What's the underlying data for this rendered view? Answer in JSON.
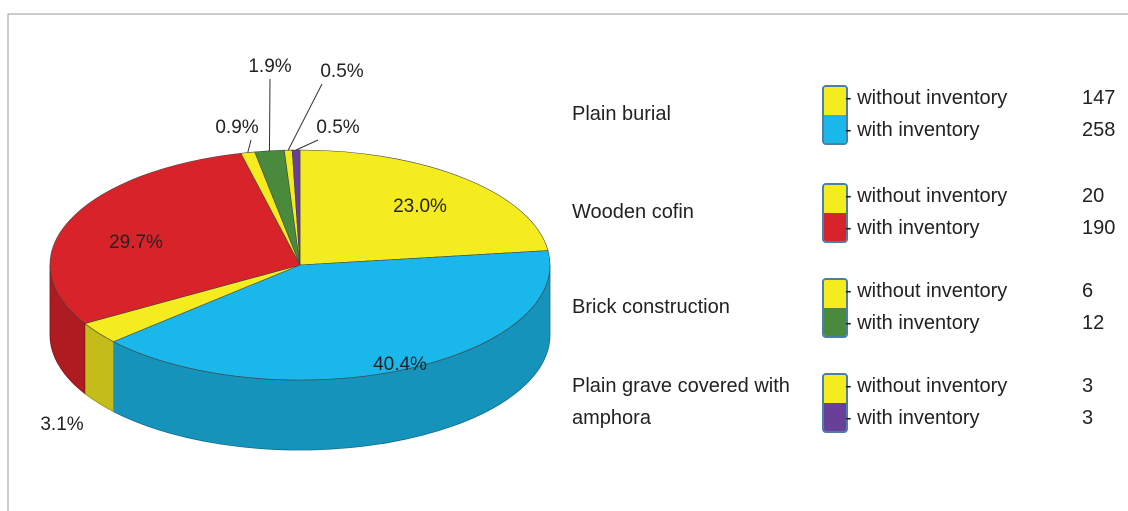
{
  "chart_data": {
    "type": "pie",
    "values": [
      23.0,
      40.4,
      3.1,
      29.7,
      0.9,
      1.9,
      0.5,
      0.5
    ],
    "value_labels": [
      "23.0%",
      "40.4%",
      "3.1%",
      "29.7%",
      "0.9%",
      "1.9%",
      "0.5%",
      "0.5%"
    ],
    "colors": [
      "#f5ec1f",
      "#1ab8ea",
      "#f5ec1f",
      "#d9232a",
      "#f5ec1f",
      "#4a8a3c",
      "#f5ec1f",
      "#6a3f9a"
    ],
    "legend": [
      {
        "group": "Plain burial",
        "entries": [
          {
            "label": "- without inventory",
            "count": 147,
            "color": "#f5ec1f"
          },
          {
            "label": "- with inventory",
            "count": 258,
            "color": "#1ab8ea"
          }
        ]
      },
      {
        "group": "Wooden cofin",
        "entries": [
          {
            "label": "- without inventory",
            "count": 20,
            "color": "#f5ec1f"
          },
          {
            "label": "- with inventory",
            "count": 190,
            "color": "#d9232a"
          }
        ]
      },
      {
        "group": "Brick construction",
        "entries": [
          {
            "label": "- without inventory",
            "count": 6,
            "color": "#f5ec1f"
          },
          {
            "label": "- with inventory",
            "count": 12,
            "color": "#4a8a3c"
          }
        ]
      },
      {
        "group": "Plain grave covered with amphora",
        "entries": [
          {
            "label": "- without inventory",
            "count": 3,
            "color": "#f5ec1f"
          },
          {
            "label": "- with inventory",
            "count": 3,
            "color": "#6a3f9a"
          }
        ]
      }
    ]
  }
}
